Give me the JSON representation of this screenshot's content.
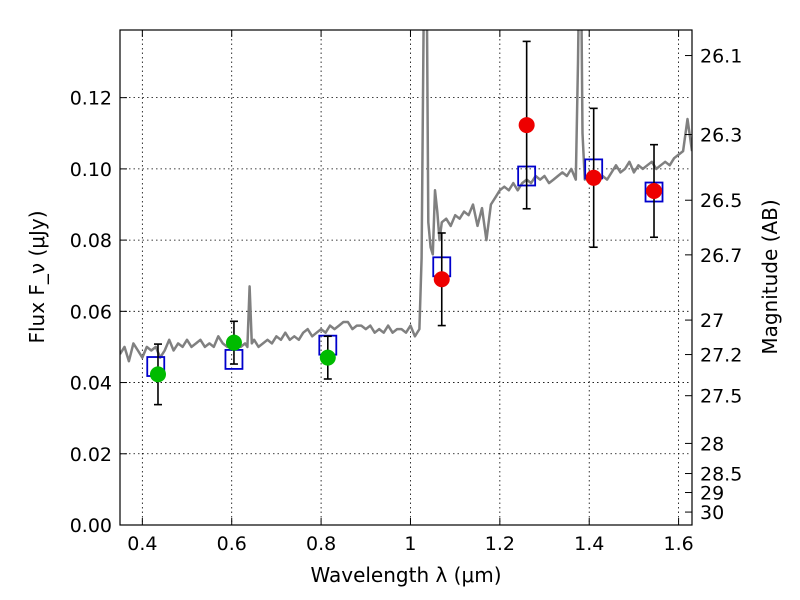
{
  "chart_data": {
    "type": "scatter",
    "title": "",
    "xlabel": "Wavelength λ (μm)",
    "ylabel": "Flux F_ν (μJy)",
    "y2label": "Magnitude (AB)",
    "xlim": [
      0.35,
      1.63
    ],
    "ylim": [
      0.0,
      0.139
    ],
    "grid": true,
    "x_ticks": [
      "0.4",
      "0.6",
      "0.8",
      "1",
      "1.2",
      "1.4",
      "1.6"
    ],
    "y_ticks": [
      "0.00",
      "0.02",
      "0.04",
      "0.06",
      "0.08",
      "0.10",
      "0.12"
    ],
    "y2_ticks": [
      "26.1",
      "26.3",
      "26.5",
      "26.7",
      "27",
      "27.2",
      "27.5",
      "28",
      "28.5",
      "29",
      "30"
    ],
    "colors": {
      "spectrum": "#808080",
      "model_box": "#0000cc",
      "green_points": "#00bb00",
      "red_points": "#ee0000",
      "error_bars": "#000000"
    },
    "series": [
      {
        "kind": "line",
        "x": [
          0.35,
          0.36,
          0.37,
          0.38,
          0.39,
          0.4,
          0.41,
          0.42,
          0.43,
          0.44,
          0.45,
          0.46,
          0.47,
          0.48,
          0.49,
          0.5,
          0.51,
          0.52,
          0.53,
          0.54,
          0.55,
          0.56,
          0.57,
          0.58,
          0.59,
          0.6,
          0.61,
          0.62,
          0.63,
          0.635,
          0.64,
          0.645,
          0.65,
          0.66,
          0.67,
          0.68,
          0.69,
          0.7,
          0.71,
          0.72,
          0.73,
          0.74,
          0.75,
          0.76,
          0.77,
          0.78,
          0.79,
          0.8,
          0.81,
          0.82,
          0.83,
          0.84,
          0.85,
          0.86,
          0.87,
          0.88,
          0.89,
          0.9,
          0.91,
          0.92,
          0.93,
          0.94,
          0.95,
          0.96,
          0.97,
          0.98,
          0.99,
          1.0,
          1.01,
          1.02,
          1.025,
          1.03,
          1.035,
          1.04,
          1.045,
          1.05,
          1.055,
          1.06,
          1.065,
          1.07,
          1.08,
          1.09,
          1.1,
          1.11,
          1.12,
          1.13,
          1.14,
          1.15,
          1.16,
          1.17,
          1.18,
          1.19,
          1.2,
          1.21,
          1.22,
          1.23,
          1.24,
          1.25,
          1.26,
          1.27,
          1.28,
          1.29,
          1.3,
          1.31,
          1.32,
          1.33,
          1.34,
          1.35,
          1.36,
          1.37,
          1.375,
          1.38,
          1.385,
          1.39,
          1.4,
          1.41,
          1.42,
          1.43,
          1.44,
          1.45,
          1.46,
          1.47,
          1.48,
          1.49,
          1.5,
          1.51,
          1.52,
          1.53,
          1.54,
          1.55,
          1.56,
          1.57,
          1.58,
          1.59,
          1.6,
          1.61,
          1.62,
          1.63
        ],
        "y": [
          0.048,
          0.05,
          0.046,
          0.051,
          0.049,
          0.047,
          0.05,
          0.049,
          0.05,
          0.047,
          0.049,
          0.052,
          0.049,
          0.051,
          0.05,
          0.052,
          0.05,
          0.051,
          0.052,
          0.05,
          0.051,
          0.05,
          0.053,
          0.051,
          0.05,
          0.052,
          0.051,
          0.05,
          0.051,
          0.05,
          0.067,
          0.051,
          0.052,
          0.05,
          0.051,
          0.052,
          0.051,
          0.053,
          0.052,
          0.054,
          0.052,
          0.053,
          0.052,
          0.054,
          0.055,
          0.053,
          0.054,
          0.055,
          0.054,
          0.056,
          0.055,
          0.056,
          0.057,
          0.057,
          0.055,
          0.056,
          0.056,
          0.055,
          0.056,
          0.054,
          0.055,
          0.054,
          0.056,
          0.054,
          0.055,
          0.055,
          0.054,
          0.056,
          0.053,
          0.055,
          0.075,
          0.15,
          0.18,
          0.085,
          0.078,
          0.076,
          0.094,
          0.088,
          0.08,
          0.085,
          0.086,
          0.084,
          0.087,
          0.086,
          0.088,
          0.087,
          0.09,
          0.084,
          0.089,
          0.08,
          0.09,
          0.092,
          0.094,
          0.095,
          0.094,
          0.096,
          0.094,
          0.096,
          0.097,
          0.096,
          0.098,
          0.097,
          0.098,
          0.096,
          0.097,
          0.098,
          0.099,
          0.098,
          0.1,
          0.097,
          0.13,
          0.18,
          0.11,
          0.097,
          0.099,
          0.097,
          0.096,
          0.098,
          0.097,
          0.099,
          0.101,
          0.099,
          0.1,
          0.102,
          0.099,
          0.101,
          0.1,
          0.101,
          0.102,
          0.1,
          0.101,
          0.102,
          0.101,
          0.103,
          0.104,
          0.105,
          0.114,
          0.105
        ]
      },
      {
        "kind": "model-box",
        "x": [
          0.43,
          0.605,
          0.815,
          1.07,
          1.26,
          1.41,
          1.545
        ],
        "y": [
          0.0445,
          0.0465,
          0.0505,
          0.0725,
          0.098,
          0.1,
          0.0935
        ]
      },
      {
        "kind": "points",
        "color": "green",
        "x": [
          0.435,
          0.605,
          0.815
        ],
        "y": [
          0.0423,
          0.0512,
          0.047
        ],
        "err": [
          0.0085,
          0.006,
          0.006
        ]
      },
      {
        "kind": "points",
        "color": "red",
        "x": [
          1.07,
          1.26,
          1.41,
          1.545
        ],
        "y": [
          0.069,
          0.1123,
          0.0975,
          0.0938
        ],
        "err": [
          0.013,
          0.0235,
          0.0195,
          0.013
        ]
      }
    ]
  }
}
